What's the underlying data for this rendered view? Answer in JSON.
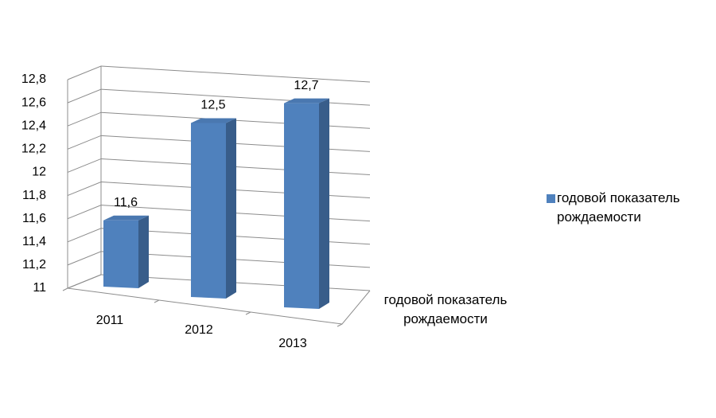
{
  "chart_data": {
    "type": "bar3d",
    "categories": [
      "2011",
      "2012",
      "2013"
    ],
    "series": [
      {
        "name": "годовой показатель рождаемости",
        "color": "#4f81bd",
        "values": [
          11.6,
          12.5,
          12.7
        ],
        "value_labels": [
          "11,6",
          "12,5",
          "12,7"
        ]
      }
    ],
    "ylim": [
      11,
      12.8
    ],
    "yticks": [
      11,
      {
        "value": 11.2,
        "label": "11,2"
      },
      {
        "value": 11.4,
        "label": "11,4"
      },
      {
        "value": 11.6,
        "label": "11,6"
      },
      {
        "value": 11.8,
        "label": "11,8"
      },
      12,
      {
        "value": 12.2,
        "label": "12,2"
      },
      {
        "value": 12.4,
        "label": "12,4"
      },
      {
        "value": 12.6,
        "label": "12,6"
      },
      {
        "value": 12.8,
        "label": "12,8"
      }
    ],
    "grid": true,
    "legend": "right"
  }
}
